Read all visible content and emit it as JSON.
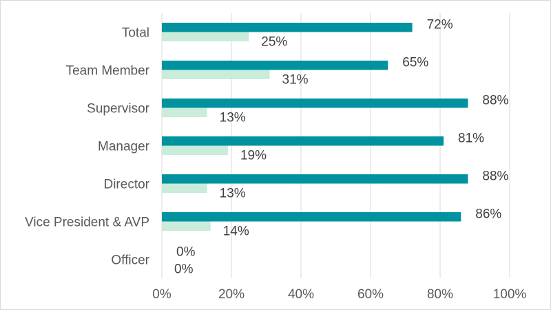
{
  "chart_data": {
    "type": "bar",
    "orientation": "horizontal",
    "categories": [
      "Total",
      "Team Member",
      "Supervisor",
      "Manager",
      "Director",
      "Vice President & AVP",
      "Officer"
    ],
    "series": [
      {
        "color": "#00929f",
        "values": [
          72,
          65,
          88,
          81,
          88,
          86,
          0
        ],
        "labels": [
          "72%",
          "65%",
          "88%",
          "81%",
          "88%",
          "86%",
          "0%"
        ]
      },
      {
        "color": "#c9ecdb",
        "values": [
          25,
          31,
          13,
          19,
          13,
          14,
          0
        ],
        "labels": [
          "25%",
          "31%",
          "13%",
          "19%",
          "13%",
          "14%",
          "0%"
        ]
      }
    ],
    "xlim": [
      0,
      100
    ],
    "xticks": [
      0,
      20,
      40,
      60,
      80,
      100
    ],
    "xtick_labels": [
      "0%",
      "20%",
      "40%",
      "60%",
      "80%",
      "100%"
    ],
    "grid": true,
    "legend": "none",
    "title": "",
    "xlabel": "",
    "ylabel": ""
  }
}
